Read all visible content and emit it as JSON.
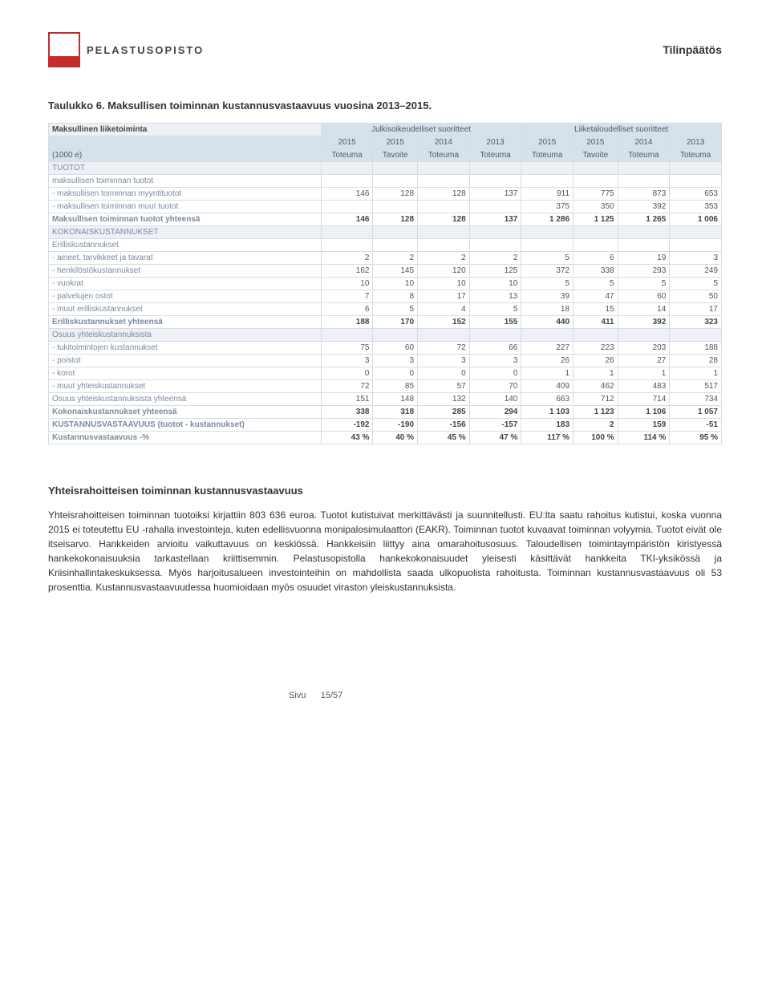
{
  "brand": "PELASTUSOPISTO",
  "page_header_right": "Tilinpäätös",
  "table_caption": "Taulukko 6. Maksullisen toiminnan kustannusvastaavuus vuosina 2013–2015.",
  "table_top_left": "Maksullinen liiketoiminta",
  "group_headers": [
    "Julkisoikeudelliset suoritteet",
    "Liiketaloudelliset suoritteet"
  ],
  "year_headers": [
    "2015",
    "2015",
    "2014",
    "2013",
    "2015",
    "2015",
    "2014",
    "2013"
  ],
  "unit_label": "(1000 e)",
  "col_subheaders": [
    "Toteuma",
    "Tavoite",
    "Toteuma",
    "Toteuma",
    "Toteuma",
    "Tavoite",
    "Toteuma",
    "Toteuma"
  ],
  "rows": [
    {
      "label": "TUOTOT",
      "vals": [
        "",
        "",
        "",
        "",
        "",
        "",
        "",
        ""
      ],
      "cls": "section-hdr"
    },
    {
      "label": "maksullisen toiminnan tuotot",
      "vals": [
        "",
        "",
        "",
        "",
        "",
        "",
        "",
        ""
      ]
    },
    {
      "label": "- maksullisen toiminnan myyntituotot",
      "vals": [
        "146",
        "128",
        "128",
        "137",
        "911",
        "775",
        "873",
        "653"
      ]
    },
    {
      "label": "- maksullisen toiminnan muut tuotot",
      "vals": [
        "",
        "",
        "",
        "",
        "375",
        "350",
        "392",
        "353"
      ]
    },
    {
      "label": "Maksullisen toiminnan tuotot yhteensä",
      "vals": [
        "146",
        "128",
        "128",
        "137",
        "1 286",
        "1 125",
        "1 265",
        "1 006"
      ],
      "cls": "bold-row"
    },
    {
      "label": "KOKONAISKUSTANNUKSET",
      "vals": [
        "",
        "",
        "",
        "",
        "",
        "",
        "",
        ""
      ],
      "cls": "section-hdr"
    },
    {
      "label": "Erilliskustannukset",
      "vals": [
        "",
        "",
        "",
        "",
        "",
        "",
        "",
        ""
      ]
    },
    {
      "label": "- aineet, tarvikkeet ja tavarat",
      "vals": [
        "2",
        "2",
        "2",
        "2",
        "5",
        "6",
        "19",
        "3"
      ]
    },
    {
      "label": "- henkilöstökustannukset",
      "vals": [
        "162",
        "145",
        "120",
        "125",
        "372",
        "338",
        "293",
        "249"
      ]
    },
    {
      "label": "- vuokrat",
      "vals": [
        "10",
        "10",
        "10",
        "10",
        "5",
        "5",
        "5",
        "5"
      ]
    },
    {
      "label": "- palvelujen ostot",
      "vals": [
        "7",
        "8",
        "17",
        "13",
        "39",
        "47",
        "60",
        "50"
      ]
    },
    {
      "label": "- muut erilliskustannukset",
      "vals": [
        "6",
        "5",
        "4",
        "5",
        "18",
        "15",
        "14",
        "17"
      ]
    },
    {
      "label": "Erilliskustannukset yhteensä",
      "vals": [
        "188",
        "170",
        "152",
        "155",
        "440",
        "411",
        "392",
        "323"
      ],
      "cls": "bold-row"
    },
    {
      "label": "Osuus yhteiskustannuksista",
      "vals": [
        "",
        "",
        "",
        "",
        "",
        "",
        "",
        ""
      ],
      "cls": "section-hdr"
    },
    {
      "label": "- tukitoimintojen kustannukset",
      "vals": [
        "75",
        "60",
        "72",
        "66",
        "227",
        "223",
        "203",
        "188"
      ]
    },
    {
      "label": "- poistot",
      "vals": [
        "3",
        "3",
        "3",
        "3",
        "26",
        "26",
        "27",
        "28"
      ]
    },
    {
      "label": "- korot",
      "vals": [
        "0",
        "0",
        "0",
        "0",
        "1",
        "1",
        "1",
        "1"
      ]
    },
    {
      "label": "- muut yhteiskustannukset",
      "vals": [
        "72",
        "85",
        "57",
        "70",
        "409",
        "462",
        "483",
        "517"
      ]
    },
    {
      "label": "Osuus yhteiskustannuksista yhteensä",
      "vals": [
        "151",
        "148",
        "132",
        "140",
        "663",
        "712",
        "714",
        "734"
      ]
    },
    {
      "label": "Kokonaiskustannukset yhteensä",
      "vals": [
        "338",
        "318",
        "285",
        "294",
        "1 103",
        "1 123",
        "1 106",
        "1 057"
      ],
      "cls": "bold-row"
    },
    {
      "label": "KUSTANNUSVASTAAVUUS (tuotot - kustannukset)",
      "vals": [
        "-192",
        "-190",
        "-156",
        "-157",
        "183",
        "2",
        "159",
        "-51"
      ],
      "cls": "bold-row"
    },
    {
      "label": "Kustannusvastaavuus -%",
      "vals": [
        "43 %",
        "40 %",
        "45 %",
        "47 %",
        "117 %",
        "100 %",
        "114 %",
        "95 %"
      ],
      "cls": "bold-row"
    }
  ],
  "body_heading": "Yhteisrahoitteisen toiminnan kustannusvastaavuus",
  "body_text": "Yhteisrahoitteisen toiminnan tuotoiksi kirjattiin 803 636 euroa. Tuotot kutistuivat merkittävästi ja suunnitellusti. EU:lta saatu rahoitus kutistui, koska vuonna 2015 ei toteutettu EU -rahalla investointeja, kuten edellisvuonna monipalosimulaattori (EAKR). Toiminnan tuotot kuvaavat toiminnan volyymia. Tuotot eivät ole itseisarvo. Hankkeiden arvioitu vaikuttavuus on keskiössä. Hankkeisiin liittyy aina omarahoitusosuus. Taloudellisen toimintaympäristön kiristyessä hankekokonaisuuksia tarkastellaan kriittisemmin. Pelastusopistolla hankekokonaisuudet yleisesti käsittävät hankkeita TKI-yksikössä ja Kriisinhallintakeskuksessa. Myös harjoitusalueen investointeihin on mahdollista saada ulkopuolista rahoitusta. Toiminnan kustannusvastaavuus oli 53 prosenttia. Kustannusvastaavuudessa huomioidaan myös osuudet viraston yleiskustannuksista.",
  "page_num_label": "Sivu",
  "page_num": "15/57",
  "colors": {
    "header_bg": "#d6e1ec",
    "section_bg": "#edf1f6",
    "border": "#d7dce2",
    "label_text": "#7a8aa0"
  }
}
